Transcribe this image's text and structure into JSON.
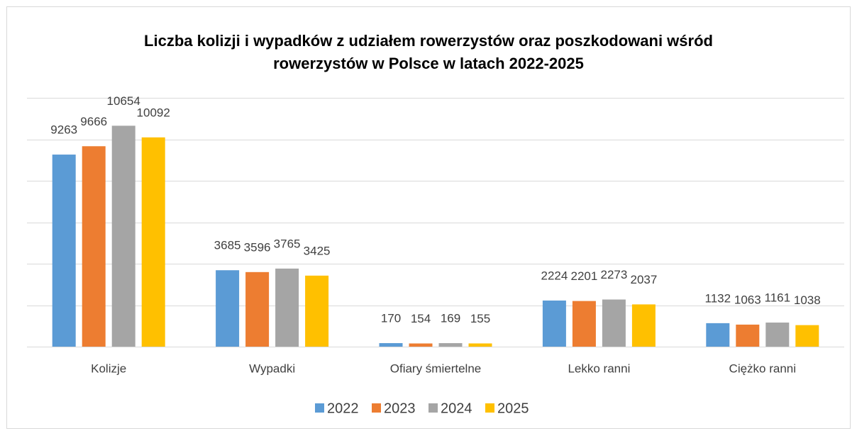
{
  "chart_data": {
    "type": "bar",
    "title": "Liczba kolizji i wypadków z udziałem rowerzystów oraz poszkodowani wśród rowerzystów w Polsce w latach 2022-2025",
    "categories": [
      "Kolizje",
      "Wypadki",
      "Ofiary śmiertelne",
      "Lekko ranni",
      "Ciężko ranni"
    ],
    "series": [
      {
        "name": "2022",
        "color": "#5b9bd5",
        "values": [
          9263,
          3685,
          170,
          2224,
          1132
        ]
      },
      {
        "name": "2023",
        "color": "#ed7d31",
        "values": [
          9666,
          3596,
          154,
          2201,
          1063
        ]
      },
      {
        "name": "2024",
        "color": "#a5a5a5",
        "values": [
          10654,
          3765,
          169,
          2273,
          1161
        ]
      },
      {
        "name": "2025",
        "color": "#ffc000",
        "values": [
          10092,
          3425,
          155,
          2037,
          1038
        ]
      }
    ],
    "ylim": [
      0,
      12000
    ],
    "yticks": [
      0,
      2000,
      4000,
      6000,
      8000,
      10000,
      12000
    ],
    "grid": true,
    "legend": "bottom"
  }
}
